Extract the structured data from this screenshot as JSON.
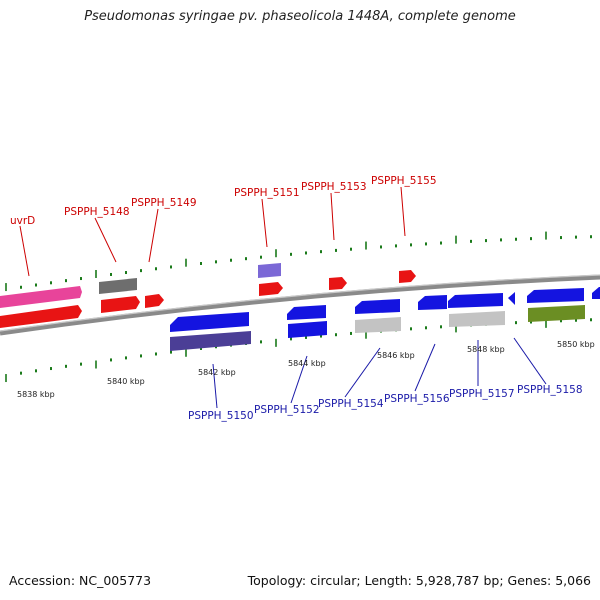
{
  "title": "Pseudomonas syringae pv. phaseolicola 1448A, complete genome",
  "footer": {
    "accession": "Accession: NC_005773",
    "summary": "Topology: circular; Length: 5,928,787 bp; Genes: 5,066"
  },
  "colors": {
    "backbone": "#8a8a8a",
    "forward_label": "#cc0000",
    "reverse_label": "#1a1aa8",
    "tick": "#1a7a1a",
    "scale_text": "#222222"
  },
  "scale_labels": [
    "5838 kbp",
    "5840 kbp",
    "5842 kbp",
    "5844 kbp",
    "5846 kbp",
    "5848 kbp",
    "5850 kbp"
  ],
  "forward_labels": [
    "uvrD",
    "PSPPH_5148",
    "PSPPH_5149",
    "PSPPH_5151",
    "PSPPH_5153",
    "PSPPH_5155"
  ],
  "reverse_labels": [
    "PSPPH_5150",
    "PSPPH_5152",
    "PSPPH_5154",
    "PSPPH_5156",
    "PSPPH_5157",
    "PSPPH_5158"
  ]
}
